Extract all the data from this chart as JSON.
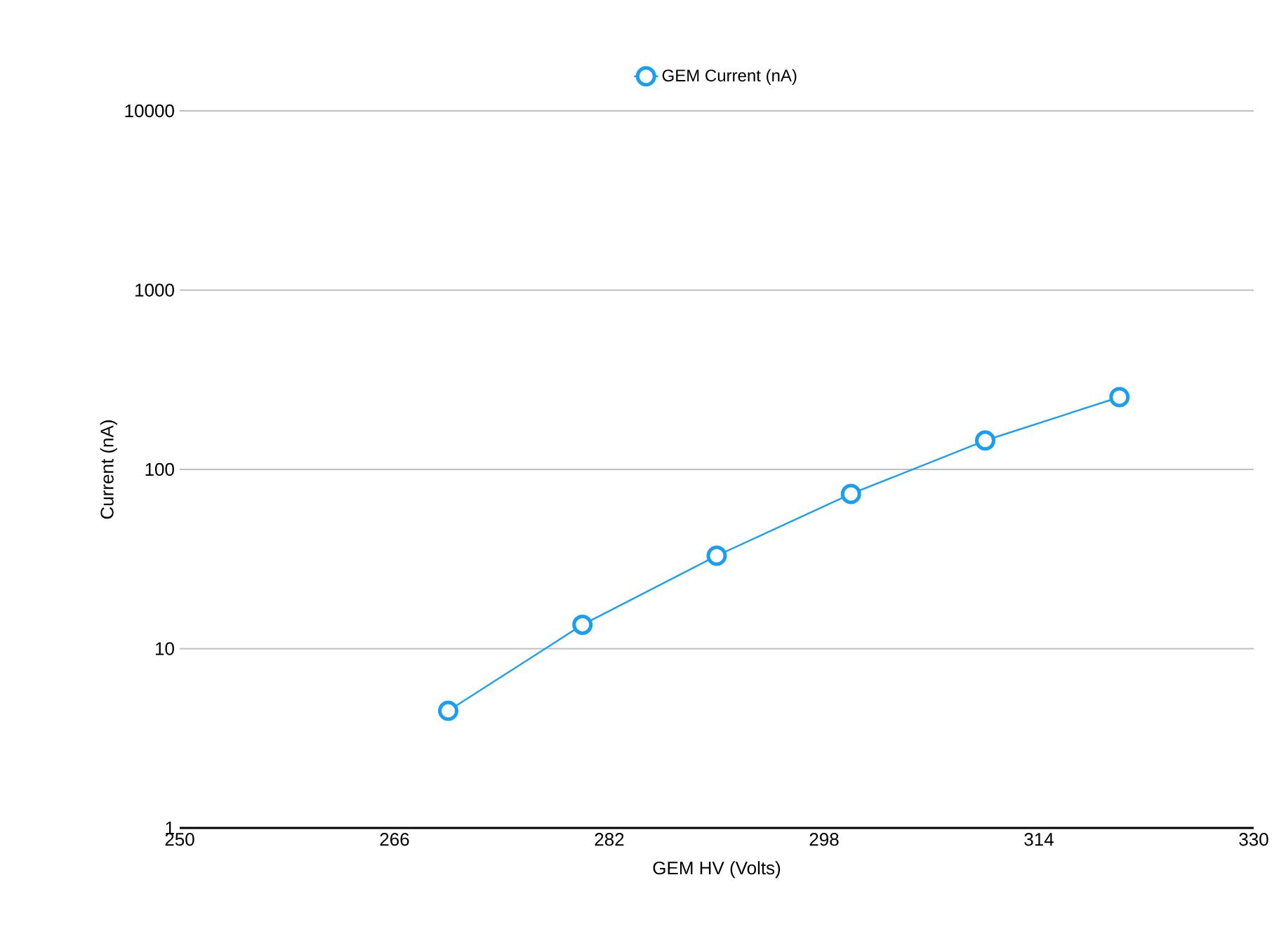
{
  "chart_data": {
    "type": "line",
    "xlabel": "GEM HV (Volts)",
    "ylabel": "Current (nA)",
    "x": [
      270,
      280,
      290,
      300,
      310,
      320
    ],
    "series": [
      {
        "name": "GEM Current (nA)",
        "color": "#1a9ff0",
        "values": [
          4.5,
          13.6,
          33,
          73,
          145,
          253
        ]
      }
    ],
    "xlim": [
      250,
      330
    ],
    "xticks": [
      250,
      266,
      282,
      298,
      314,
      330
    ],
    "ylim": [
      1,
      10000
    ],
    "yticks": [
      1,
      10,
      100,
      1000,
      10000
    ],
    "log": "y",
    "grid": "y",
    "legend": "top",
    "marker": "circle",
    "line_style": "solid"
  }
}
